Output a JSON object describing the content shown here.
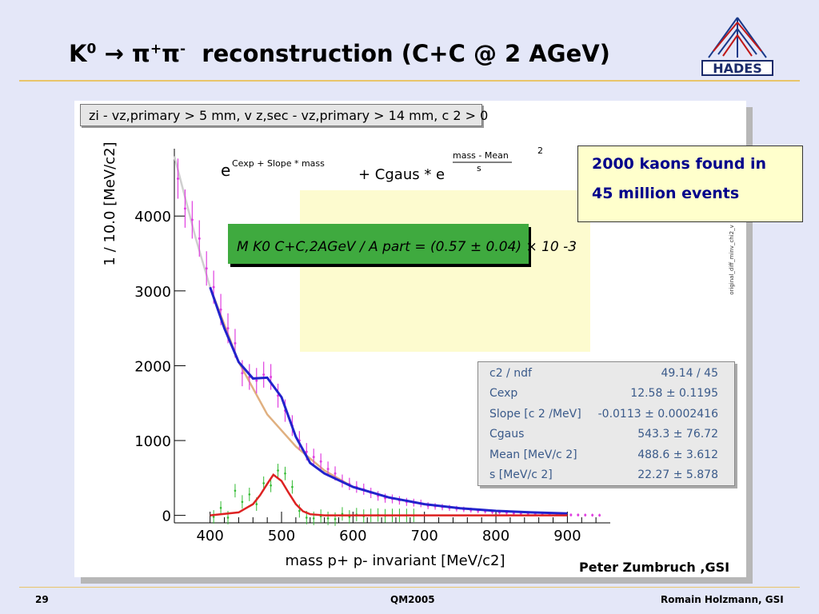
{
  "slide": {
    "title_k": "K",
    "title_k_sup": "0",
    "title_arrow": "→",
    "title_pi1": "π",
    "title_pi1_sup": "+",
    "title_pi2": "π",
    "title_pi2_sup": "-",
    "title_rest": "reconstruction   (C+C @ 2 AGeV)",
    "logo_text": "HADES",
    "credit": "Peter Zumbruch ,GSI",
    "footer_page": "29",
    "footer_center": "QM2005",
    "footer_right": "Romain Holzmann, GSI",
    "colors": {
      "background": "#e4e7f8",
      "accent_rule": "#e9c56a",
      "callout_text": "#00008b"
    }
  },
  "cuts": "zi - vz,primary > 5 mm, v z,sec - vz,primary > 14 mm,  c 2 > 0",
  "callout": {
    "line1": "2000 kaons found in",
    "line2": "45 million events"
  },
  "result_box": {
    "text": "M K0 C+C,2AGeV / A part = (0.57 ± 0.04) × 10 -3"
  },
  "fit_formula": {
    "part1": "e",
    "part1_sup": "Cexp + Slope * mass",
    "part2": "+ Cgaus * e",
    "frac_num": "mass - Mean",
    "frac_den": "s",
    "power": "2"
  },
  "side_label": "original_diff_minv_chi2_v",
  "stats": {
    "rows": [
      {
        "key": "c2 / ndf",
        "value": "49.14 / 45"
      },
      {
        "key": "Cexp",
        "value": "12.58 ± 0.1195"
      },
      {
        "key": "Slope [c 2 /MeV]",
        "value": "-0.0113 ± 0.0002416"
      },
      {
        "key": "Cgaus",
        "value": "543.3 ± 76.72"
      },
      {
        "key": "Mean [MeV/c 2]",
        "value": "488.6 ± 3.612"
      },
      {
        "key": "s  [MeV/c 2]",
        "value": "22.27 ± 5.878"
      }
    ]
  },
  "chart_data": {
    "type": "scatter",
    "xlabel": "mass p+ p- invariant [MeV/c2]",
    "ylabel": "1 / 10.0 [MeV/c2]",
    "xlim": [
      350,
      960
    ],
    "ylim": [
      -100,
      4900
    ],
    "xticks": [
      400,
      500,
      600,
      700,
      800,
      900
    ],
    "yticks": [
      0,
      1000,
      2000,
      3000,
      4000
    ],
    "grid": false,
    "series": [
      {
        "role": "data points",
        "color": "#e040e0",
        "x": [
          355,
          365,
          375,
          385,
          395,
          405,
          415,
          425,
          435,
          445,
          455,
          465,
          475,
          485,
          495,
          505,
          515,
          525,
          535,
          545,
          555,
          565,
          575,
          585,
          595,
          605,
          615,
          625,
          635,
          645,
          655,
          665,
          675,
          685,
          695,
          705,
          715,
          725,
          735,
          745,
          755,
          765,
          775,
          785,
          795,
          805,
          815,
          825,
          835,
          845,
          855,
          865,
          875,
          885,
          895,
          905,
          915,
          925,
          935,
          945
        ],
        "y": [
          4500,
          4100,
          3950,
          3700,
          3300,
          3050,
          2750,
          2500,
          2300,
          1900,
          1850,
          1800,
          1880,
          1850,
          1600,
          1400,
          1200,
          1000,
          850,
          780,
          720,
          620,
          560,
          460,
          420,
          380,
          350,
          300,
          260,
          230,
          220,
          200,
          180,
          170,
          160,
          130,
          120,
          110,
          100,
          90,
          80,
          70,
          60,
          55,
          45,
          40,
          35,
          30,
          25,
          20,
          18,
          15,
          12,
          10,
          8,
          6,
          5,
          4,
          3,
          2
        ]
      },
      {
        "role": "signal points (background subtracted)",
        "color": "#33bb33",
        "x": [
          405,
          415,
          425,
          435,
          445,
          455,
          465,
          475,
          485,
          495,
          505,
          515,
          525,
          535,
          545,
          555,
          565,
          575,
          585,
          595,
          605,
          615,
          625,
          635,
          645,
          655,
          665,
          675,
          685
        ],
        "y": [
          -20,
          100,
          -30,
          330,
          180,
          280,
          150,
          430,
          400,
          600,
          560,
          380,
          60,
          -30,
          -40,
          -10,
          -40,
          -50,
          20,
          -20,
          10,
          -10,
          0,
          5,
          -5,
          0,
          0,
          0,
          0
        ]
      },
      {
        "role": "total fit",
        "color": "#2222cc",
        "x": [
          400,
          420,
          440,
          460,
          480,
          500,
          520,
          540,
          560,
          600,
          650,
          700,
          750,
          800,
          850,
          900
        ],
        "y": [
          3050,
          2500,
          2050,
          1830,
          1840,
          1580,
          1050,
          700,
          560,
          380,
          240,
          150,
          95,
          60,
          40,
          25
        ]
      },
      {
        "role": "exponential background",
        "color": "#e0b080",
        "x": [
          350,
          380,
          400,
          440,
          480,
          520,
          560,
          600
        ],
        "y": [
          4800,
          3700,
          3050,
          2050,
          1350,
          920,
          600,
          380
        ]
      },
      {
        "role": "gaussian signal fit",
        "color": "#dd2222",
        "x": [
          400,
          440,
          460,
          470,
          480,
          488.6,
          500,
          510,
          520,
          530,
          540,
          560,
          600,
          700,
          800,
          900
        ],
        "y": [
          0,
          40,
          150,
          270,
          420,
          543,
          460,
          300,
          150,
          55,
          15,
          0,
          0,
          0,
          0,
          0
        ]
      }
    ]
  }
}
